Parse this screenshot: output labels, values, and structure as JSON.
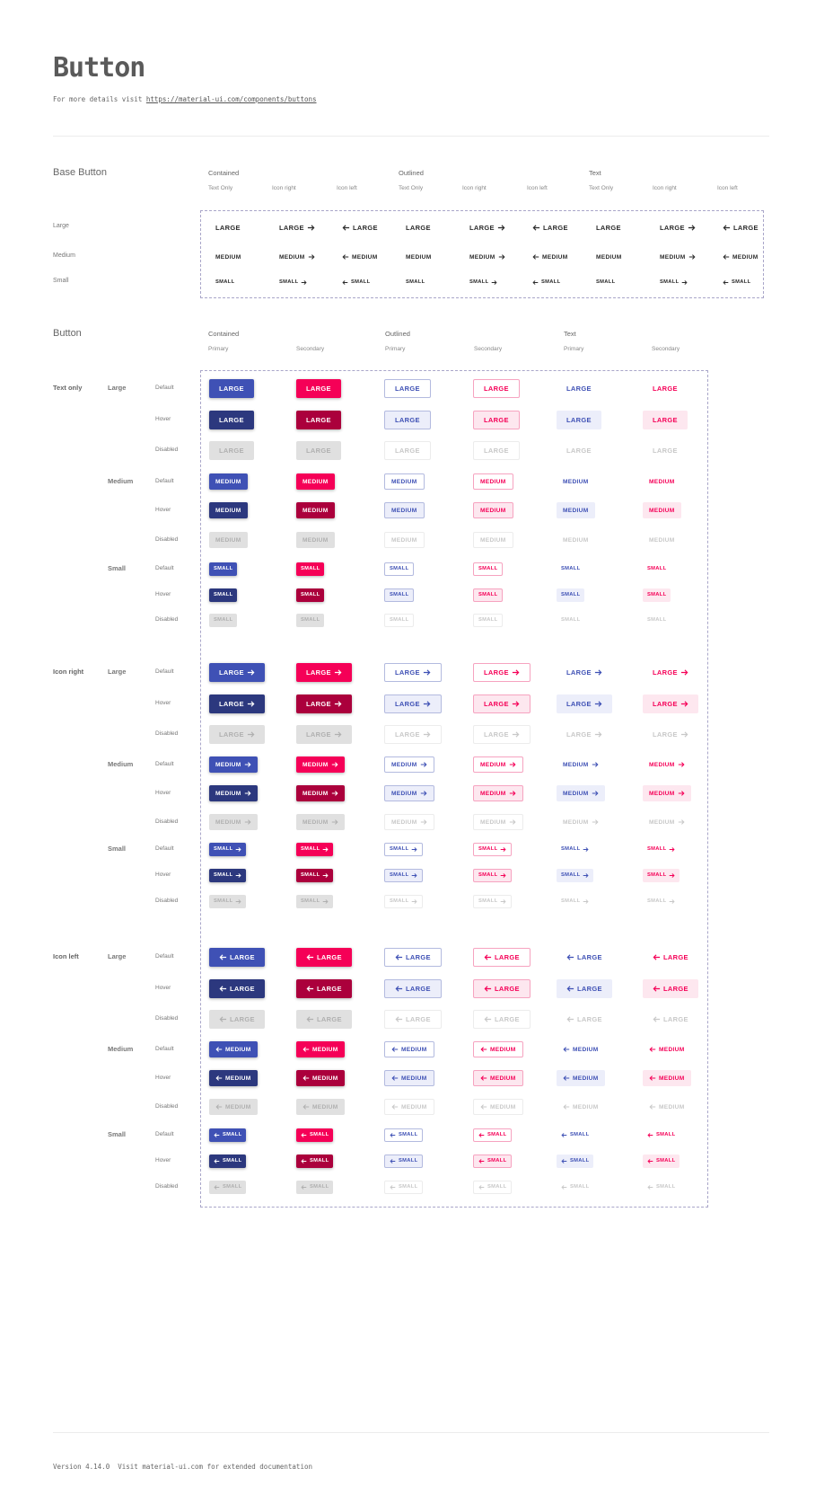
{
  "header": {
    "title": "Button",
    "subtitle_prefix": "For more details visit",
    "link": "https://material-ui.com/components/buttons"
  },
  "base": {
    "title": "Base Button",
    "groups": [
      "Contained",
      "Outlined",
      "Text"
    ],
    "variants": [
      "Text Only",
      "Icon right",
      "Icon left"
    ],
    "sizes": [
      "Large",
      "Medium",
      "Small"
    ]
  },
  "button_section": {
    "title": "Button",
    "groups": [
      "Contained",
      "Outlined",
      "Text"
    ],
    "colors": [
      "Primary",
      "Secondary"
    ],
    "types": [
      "Text only",
      "Icon right",
      "Icon left"
    ],
    "sizes": [
      "Large",
      "Medium",
      "Small"
    ],
    "states": [
      "Default",
      "Hover",
      "Disabled"
    ]
  },
  "button_labels": [
    "LARGE",
    "MEDIUM",
    "SMALL"
  ],
  "icons": {
    "right": "arrow-right-icon",
    "left": "arrow-left-icon"
  },
  "colors": {
    "primary": "#3f51b5",
    "primary_hover": "#2c387e",
    "secondary": "#f50057",
    "secondary_hover": "#ab003c",
    "disabled_bg": "#e0e0e0",
    "disabled_text": "#b0b0b0",
    "primary_tint": "#eceefa",
    "secondary_tint": "#fde7ef",
    "base_text": "#2b2b2b",
    "dashed_border": "#a9a6c9"
  },
  "footer": {
    "version": "Version 4.14.0",
    "text": "Visit material-ui.com for extended documentation"
  }
}
